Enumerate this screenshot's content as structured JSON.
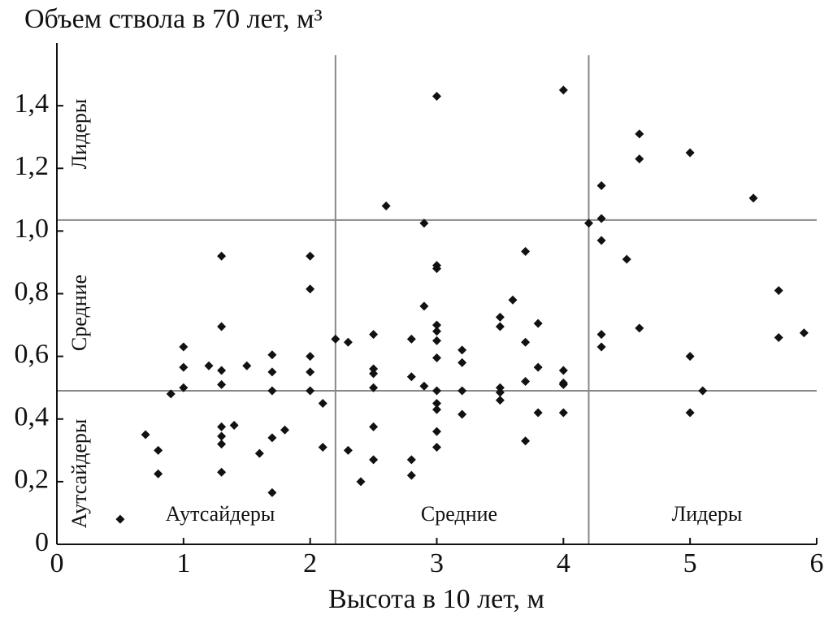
{
  "chart_data": {
    "type": "scatter",
    "title": "Объем ствола в 70 лет, м³",
    "x_label": "Высота в 10 лет, м",
    "xlim": [
      0,
      6
    ],
    "ylim": [
      0,
      1.6
    ],
    "xticks": [
      0,
      1,
      2,
      3,
      4,
      5,
      6
    ],
    "yticks": [
      0,
      {
        "value": 0.2,
        "label": "0,2"
      },
      {
        "value": 0.4,
        "label": "0,4"
      },
      {
        "value": 0.6,
        "label": "0,6"
      },
      {
        "value": 0.8,
        "label": "0,8"
      },
      {
        "value": 1.0,
        "label": "1,0"
      },
      {
        "value": 1.2,
        "label": "1,2"
      },
      {
        "value": 1.4,
        "label": "1,4"
      }
    ],
    "threshold_x": [
      2.2,
      4.2
    ],
    "threshold_y": [
      0.49,
      1.035
    ],
    "group_labels_y": [
      "Аутсайдеры",
      "Средние",
      "Лидеры"
    ],
    "group_labels_x": [
      "Аутсайдеры",
      "Средние",
      "Лидеры"
    ],
    "color": "#111111",
    "line_color": "#888888",
    "x": [
      0.5,
      0.7,
      0.8,
      0.8,
      0.9,
      1.0,
      1.0,
      1.0,
      1.2,
      1.3,
      1.3,
      1.3,
      1.3,
      1.3,
      1.3,
      1.3,
      1.3,
      1.4,
      1.5,
      1.6,
      1.7,
      1.7,
      1.7,
      1.7,
      1.7,
      1.8,
      2.0,
      2.0,
      2.0,
      2.0,
      2.0,
      2.1,
      2.1,
      2.2,
      2.3,
      2.3,
      2.4,
      2.5,
      2.5,
      2.5,
      2.5,
      2.5,
      2.5,
      2.6,
      2.8,
      2.8,
      2.8,
      2.8,
      2.9,
      2.9,
      2.9,
      3.0,
      3.0,
      3.0,
      3.0,
      3.0,
      3.0,
      3.0,
      3.0,
      3.0,
      3.0,
      3.0,
      3.0,
      3.2,
      3.2,
      3.2,
      3.2,
      3.5,
      3.5,
      3.5,
      3.5,
      3.5,
      3.6,
      3.7,
      3.7,
      3.7,
      3.7,
      3.8,
      3.8,
      3.8,
      4.0,
      4.0,
      4.0,
      4.0,
      4.0,
      4.2,
      4.3,
      4.3,
      4.3,
      4.3,
      4.3,
      4.5,
      4.6,
      4.6,
      4.6,
      5.0,
      5.0,
      5.0,
      5.1,
      5.5,
      5.7,
      5.7,
      5.9
    ],
    "values": [
      0.08,
      0.35,
      0.3,
      0.225,
      0.48,
      0.63,
      0.565,
      0.5,
      0.57,
      0.92,
      0.695,
      0.555,
      0.51,
      0.375,
      0.345,
      0.32,
      0.23,
      0.38,
      0.57,
      0.29,
      0.605,
      0.55,
      0.49,
      0.34,
      0.165,
      0.365,
      0.92,
      0.815,
      0.6,
      0.55,
      0.49,
      0.45,
      0.31,
      0.655,
      0.645,
      0.3,
      0.2,
      0.67,
      0.56,
      0.545,
      0.5,
      0.375,
      0.27,
      1.08,
      0.655,
      0.535,
      0.27,
      0.22,
      1.025,
      0.76,
      0.505,
      1.43,
      0.89,
      0.88,
      0.7,
      0.68,
      0.65,
      0.595,
      0.49,
      0.45,
      0.43,
      0.36,
      0.31,
      0.62,
      0.58,
      0.49,
      0.415,
      0.725,
      0.695,
      0.5,
      0.485,
      0.46,
      0.78,
      0.935,
      0.645,
      0.52,
      0.33,
      0.705,
      0.565,
      0.42,
      1.45,
      0.555,
      0.515,
      0.51,
      0.42,
      1.025,
      1.145,
      1.04,
      0.97,
      0.67,
      0.63,
      0.91,
      1.31,
      1.23,
      0.69,
      1.25,
      0.6,
      0.42,
      0.49,
      1.105,
      0.81,
      0.66,
      0.675
    ]
  }
}
